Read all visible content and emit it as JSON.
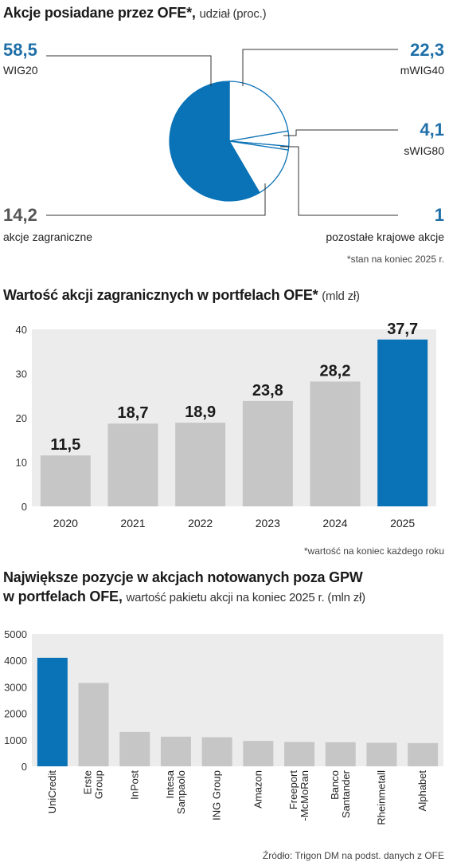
{
  "colors": {
    "accent": "#0a72b6",
    "grey": "#c6c6c6",
    "panel": "#ececec",
    "value_blue": "#1f6fa8"
  },
  "pie": {
    "title": "Akcje posiadane przez OFE*,",
    "title_unit": "udział (proc.)",
    "footnote": "*stan na koniec 2025 r."
  },
  "bar1": {
    "title": "Wartość akcji zagranicznych w portfelach OFE*",
    "title_unit": "(mld zł)",
    "footnote": "*wartość na koniec każdego roku"
  },
  "bar2": {
    "title_line1": "Największe pozycje w akcjach notowanych poza GPW",
    "title_line2": "w portfelach OFE,",
    "title_unit": "wartość pakietu akcji na koniec 2025 r. (mln zł)"
  },
  "source": "Źródło: Trigon DM na podst. danych z OFE",
  "chart_data": [
    {
      "type": "pie",
      "title": "Akcje posiadane przez OFE*, udział (proc.)",
      "slices": [
        {
          "label": "WIG20",
          "value": 58.5,
          "display": "58,5",
          "highlight": true
        },
        {
          "label": "mWIG40",
          "value": 22.3,
          "display": "22,3",
          "highlight": false
        },
        {
          "label": "sWIG80",
          "value": 4.1,
          "display": "4,1",
          "highlight": false
        },
        {
          "label": "pozostałe krajowe akcje",
          "value": 1,
          "display": "1",
          "highlight": false
        },
        {
          "label": "akcje zagraniczne",
          "value": 14.2,
          "display": "14,2",
          "highlight": false
        }
      ]
    },
    {
      "type": "bar",
      "title": "Wartość akcji zagranicznych w portfelach OFE* (mld zł)",
      "categories": [
        "2020",
        "2021",
        "2022",
        "2023",
        "2024",
        "2025"
      ],
      "values": [
        11.5,
        18.7,
        18.9,
        23.8,
        28.2,
        37.7
      ],
      "labels": [
        "11,5",
        "18,7",
        "18,9",
        "23,8",
        "28,2",
        "37,7"
      ],
      "highlight_index": 5,
      "ylim": [
        0,
        40
      ],
      "yticks": [
        "0",
        "10",
        "20",
        "30",
        "40"
      ]
    },
    {
      "type": "bar",
      "title": "Największe pozycje w akcjach notowanych poza GPW w portfelach OFE, wartość pakietu akcji na koniec 2025 r. (mln zł)",
      "categories": [
        "UniCredit",
        "Erste Group",
        "InPost",
        "Intesa Sanpaolo",
        "ING Group",
        "Amazon",
        "Freeport -McMoRan",
        "Banco Santander",
        "Rheinmetall",
        "Alphabet"
      ],
      "tick_lines": [
        [
          "UniCredit"
        ],
        [
          "Erste",
          "Group"
        ],
        [
          "InPost"
        ],
        [
          "Intesa",
          "Sanpaolo"
        ],
        [
          "ING Group"
        ],
        [
          "Amazon"
        ],
        [
          "Freeport",
          "-McMoRan"
        ],
        [
          "Banco",
          "Santander"
        ],
        [
          "Rheinmetall"
        ],
        [
          "Alphabet"
        ]
      ],
      "values": [
        4100,
        3150,
        1300,
        1120,
        1100,
        960,
        920,
        910,
        890,
        880
      ],
      "highlight_index": 0,
      "ylim": [
        0,
        5000
      ],
      "yticks": [
        "0",
        "1000",
        "2000",
        "3000",
        "4000",
        "5000"
      ]
    }
  ]
}
